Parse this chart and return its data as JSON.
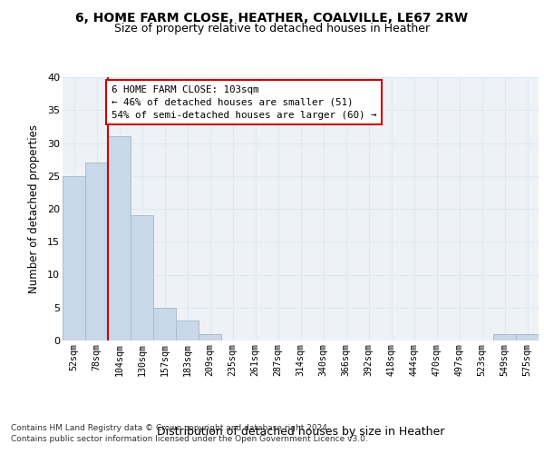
{
  "title1": "6, HOME FARM CLOSE, HEATHER, COALVILLE, LE67 2RW",
  "title2": "Size of property relative to detached houses in Heather",
  "xlabel": "Distribution of detached houses by size in Heather",
  "ylabel": "Number of detached properties",
  "bar_labels": [
    "52sqm",
    "78sqm",
    "104sqm",
    "130sqm",
    "157sqm",
    "183sqm",
    "209sqm",
    "235sqm",
    "261sqm",
    "287sqm",
    "314sqm",
    "340sqm",
    "366sqm",
    "392sqm",
    "418sqm",
    "444sqm",
    "470sqm",
    "497sqm",
    "523sqm",
    "549sqm",
    "575sqm"
  ],
  "bar_values": [
    25,
    27,
    31,
    19,
    5,
    3,
    1,
    0,
    0,
    0,
    0,
    0,
    0,
    0,
    0,
    0,
    0,
    0,
    0,
    1,
    1
  ],
  "bar_color": "#c8d8e8",
  "bar_edge_color": "#aabcce",
  "grid_color": "#dde8f0",
  "background_color": "#eef2f7",
  "vline_color": "#cc0000",
  "vline_x_index": 2,
  "annotation_text": "6 HOME FARM CLOSE: 103sqm\n← 46% of detached houses are smaller (51)\n54% of semi-detached houses are larger (60) →",
  "annotation_box_color": "#ffffff",
  "annotation_box_edge": "#cc0000",
  "footnote": "Contains HM Land Registry data © Crown copyright and database right 2024.\nContains public sector information licensed under the Open Government Licence v3.0.",
  "ylim": [
    0,
    40
  ],
  "yticks": [
    0,
    5,
    10,
    15,
    20,
    25,
    30,
    35,
    40
  ],
  "title1_fontsize": 10,
  "title2_fontsize": 9
}
